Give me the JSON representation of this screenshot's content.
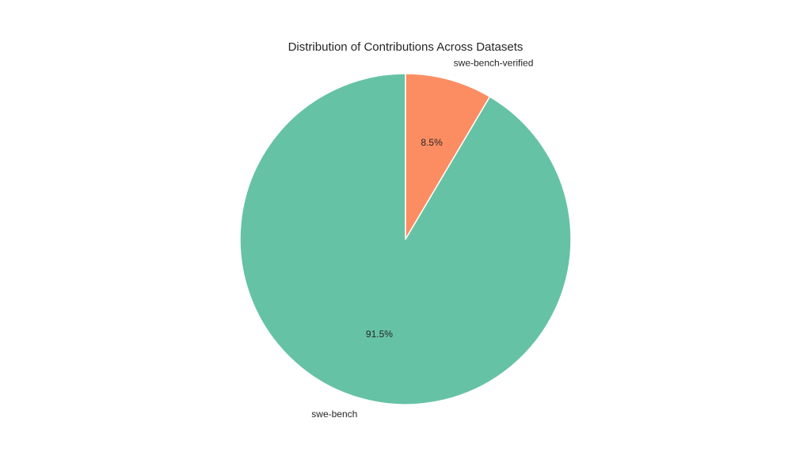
{
  "chart_data": {
    "type": "pie",
    "title": "Distribution of Contributions Across Datasets",
    "categories": [
      "swe-bench",
      "swe-bench-verified"
    ],
    "values": [
      91.5,
      8.5
    ],
    "percent_labels": [
      "91.5%",
      "8.5%"
    ],
    "colors": [
      "#66c2a5",
      "#fc8d62"
    ],
    "start_angle_deg": 90,
    "direction": "counterclockwise",
    "edge_color": "#ffffff",
    "legend": "none",
    "grid": false
  }
}
